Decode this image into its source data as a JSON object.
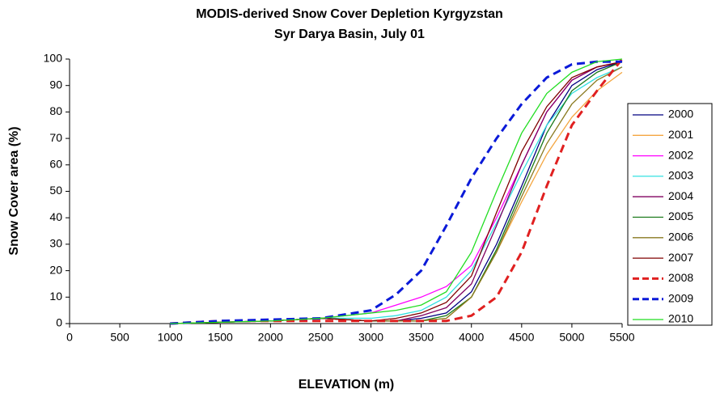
{
  "chart_data": {
    "type": "line",
    "title": "MODIS-derived Snow Cover Depletion Kyrgyzstan",
    "subtitle": "Syr Darya Basin, July 01",
    "x_label": "ELEVATION  (m)",
    "y_label": "Snow Cover area (%)",
    "x": [
      1000,
      1500,
      2000,
      2500,
      3000,
      3250,
      3500,
      3750,
      4000,
      4250,
      4500,
      4750,
      5000,
      5250,
      5500
    ],
    "xlim": [
      0,
      5500
    ],
    "xticks": [
      0,
      500,
      1000,
      1500,
      2000,
      2500,
      3000,
      3500,
      4000,
      4500,
      5000,
      5500
    ],
    "ylim": [
      0,
      100
    ],
    "yticks": [
      0,
      10,
      20,
      30,
      40,
      50,
      60,
      70,
      80,
      90,
      100
    ],
    "grid": false,
    "legend": "right",
    "series": [
      {
        "name": "2000",
        "color": "#000080",
        "dashed": false,
        "values": [
          0,
          0.5,
          1,
          2,
          1,
          1,
          2,
          4,
          12,
          30,
          52,
          75,
          90,
          96,
          99
        ]
      },
      {
        "name": "2001",
        "color": "#f4a641",
        "dashed": false,
        "values": [
          0,
          0.5,
          1,
          2,
          1,
          1,
          1,
          2,
          10,
          27,
          46,
          64,
          78,
          88,
          95
        ]
      },
      {
        "name": "2002",
        "color": "#ff00ff",
        "dashed": false,
        "values": [
          0,
          0.5,
          1,
          2,
          4,
          7,
          10,
          14,
          22,
          40,
          60,
          80,
          92,
          97,
          99
        ]
      },
      {
        "name": "2003",
        "color": "#33e0e0",
        "dashed": false,
        "values": [
          0,
          0.5,
          1,
          2,
          2,
          3,
          5,
          10,
          20,
          38,
          57,
          75,
          87,
          93,
          97
        ]
      },
      {
        "name": "2004",
        "color": "#800060",
        "dashed": false,
        "values": [
          0,
          0.5,
          1,
          2,
          1,
          1,
          3,
          6,
          15,
          37,
          60,
          80,
          92,
          97,
          99
        ]
      },
      {
        "name": "2005",
        "color": "#1a7a1a",
        "dashed": false,
        "values": [
          0,
          0.5,
          1,
          2,
          1,
          1,
          1,
          3,
          10,
          28,
          50,
          72,
          88,
          95,
          99
        ]
      },
      {
        "name": "2006",
        "color": "#8a7a20",
        "dashed": false,
        "values": [
          0,
          0.5,
          1,
          2,
          1,
          1,
          1,
          2,
          10,
          27,
          48,
          68,
          83,
          92,
          97
        ]
      },
      {
        "name": "2007",
        "color": "#800000",
        "dashed": false,
        "values": [
          0,
          0.5,
          1,
          2,
          1,
          2,
          4,
          8,
          18,
          42,
          65,
          82,
          93,
          97,
          99
        ]
      },
      {
        "name": "2008",
        "color": "#e02020",
        "dashed": true,
        "values": [
          0,
          1,
          1,
          1,
          1,
          1,
          1,
          1,
          3,
          10,
          27,
          52,
          75,
          88,
          100
        ]
      },
      {
        "name": "2009",
        "color": "#0a1ad8",
        "dashed": true,
        "values": [
          0,
          1,
          1.5,
          2,
          5,
          11,
          20,
          37,
          55,
          70,
          83,
          93,
          98,
          99,
          99
        ]
      },
      {
        "name": "2010",
        "color": "#22dd22",
        "dashed": false,
        "values": [
          0,
          0.5,
          1,
          2,
          4,
          5,
          7,
          12,
          27,
          50,
          72,
          87,
          95,
          99,
          100
        ]
      }
    ]
  }
}
